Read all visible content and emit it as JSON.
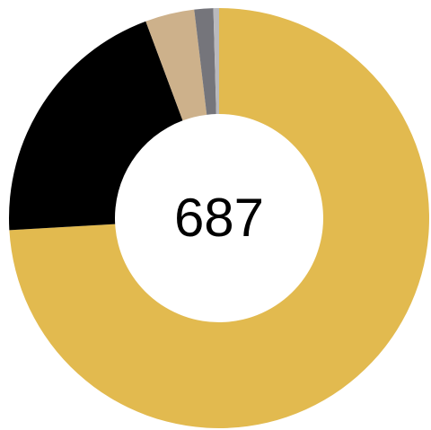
{
  "chart_data": {
    "type": "pie",
    "variant": "donut",
    "center_label": "687",
    "slices": [
      {
        "value": 509,
        "color": "#E2BA4F"
      },
      {
        "value": 139,
        "color": "#000000"
      },
      {
        "value": 26,
        "color": "#CDB18B"
      },
      {
        "value": 10,
        "color": "#75757B"
      },
      {
        "value": 3,
        "color": "#B9B9BC"
      }
    ]
  }
}
